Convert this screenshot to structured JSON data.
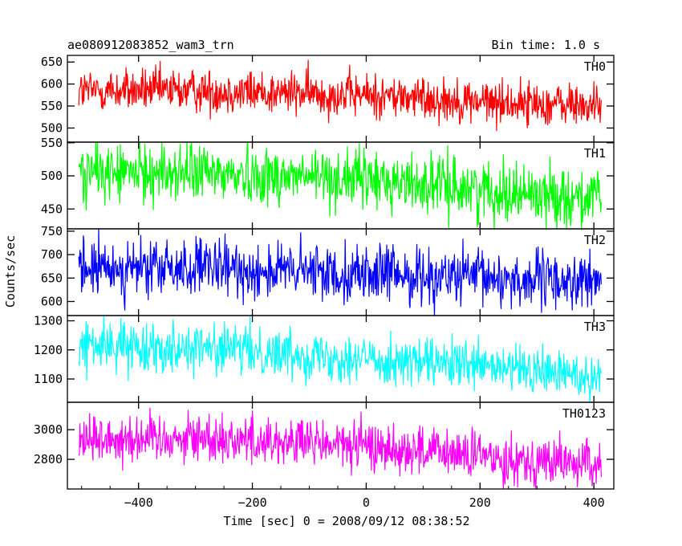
{
  "header": {
    "title": "ae080912083852_wam3_trn",
    "bin_time": "Bin time: 1.0 s"
  },
  "chart_data": {
    "type": "line",
    "title": "ae080912083852_wam3_trn",
    "bin_time_s": 1.0,
    "xlabel": "Time [sec] 0 = 2008/09/12 08:38:52",
    "ylabel": "Counts/sec",
    "xlim": [
      -525,
      435
    ],
    "x_range_data": [
      -505,
      413
    ],
    "x_ticks": [
      -400,
      -200,
      0,
      200,
      400
    ],
    "x_tick_labels": [
      "−400",
      "−200",
      "0",
      "200",
      "400"
    ],
    "panels": [
      {
        "name": "TH0",
        "color": "#ff0000",
        "ylim": [
          468,
          665
        ],
        "yticks": [
          500,
          550,
          600,
          650
        ],
        "ytick_labels": [
          "500",
          "550",
          "600",
          "650"
        ],
        "trend": [
          [
            -500,
            585
          ],
          [
            -300,
            585
          ],
          [
            0,
            575
          ],
          [
            200,
            560
          ],
          [
            410,
            550
          ]
        ],
        "noise_amp": 45
      },
      {
        "name": "TH1",
        "color": "#00ff00",
        "ylim": [
          420,
          551
        ],
        "yticks": [
          450,
          500,
          550
        ],
        "ytick_labels": [
          "450",
          "500",
          "550"
        ],
        "trend": [
          [
            -500,
            505
          ],
          [
            -300,
            505
          ],
          [
            0,
            495
          ],
          [
            200,
            480
          ],
          [
            410,
            465
          ]
        ],
        "noise_amp": 40
      },
      {
        "name": "TH2",
        "color": "#0000ff",
        "ylim": [
          570,
          755
        ],
        "yticks": [
          600,
          650,
          700,
          750
        ],
        "ytick_labels": [
          "600",
          "650",
          "700",
          "750"
        ],
        "trend": [
          [
            -500,
            670
          ],
          [
            -300,
            670
          ],
          [
            0,
            660
          ],
          [
            200,
            650
          ],
          [
            410,
            640
          ]
        ],
        "noise_amp": 55
      },
      {
        "name": "TH3",
        "color": "#00ffff",
        "ylim": [
          1020,
          1318
        ],
        "yticks": [
          1100,
          1200,
          1300
        ],
        "ytick_labels": [
          "1100",
          "1200",
          "1300"
        ],
        "trend": [
          [
            -500,
            1215
          ],
          [
            -300,
            1210
          ],
          [
            0,
            1170
          ],
          [
            200,
            1140
          ],
          [
            410,
            1110
          ]
        ],
        "noise_amp": 75
      },
      {
        "name": "TH0123",
        "color": "#ff00ff",
        "ylim": [
          2600,
          3185
        ],
        "yticks": [
          2800,
          3000
        ],
        "ytick_labels": [
          "2800",
          "3000"
        ],
        "trend": [
          [
            -500,
            2940
          ],
          [
            -300,
            2950
          ],
          [
            0,
            2890
          ],
          [
            200,
            2820
          ],
          [
            410,
            2760
          ]
        ],
        "noise_amp": 150
      }
    ]
  }
}
